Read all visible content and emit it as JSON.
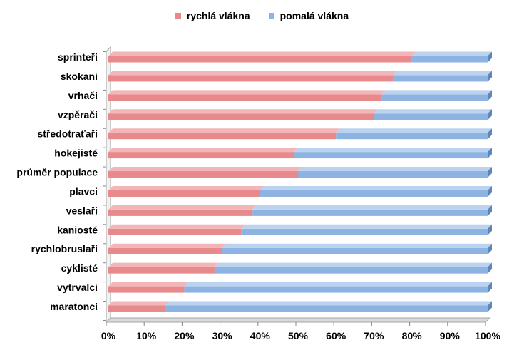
{
  "chart_data": {
    "type": "bar",
    "orientation": "horizontal",
    "stacked": true,
    "percent": true,
    "categories": [
      "sprinteři",
      "skokani",
      "vrhači",
      "vzpěrači",
      "středotraťaři",
      "hokejisté",
      "průměr populace",
      "plavci",
      "veslaři",
      "kaniosté",
      "rychlobruslaři",
      "cyklisté",
      "vytrvalci",
      "maratonci"
    ],
    "series": [
      {
        "name": "rychlá vlákna",
        "color": "#e8898c",
        "values": [
          80,
          75,
          72,
          70,
          60,
          49,
          50,
          40,
          38,
          35,
          30,
          28,
          20,
          15
        ]
      },
      {
        "name": "pomalá vlákna",
        "color": "#8db3e2",
        "values": [
          20,
          25,
          28,
          30,
          40,
          51,
          50,
          60,
          62,
          65,
          70,
          72,
          80,
          85
        ]
      }
    ],
    "xlim": [
      0,
      100
    ],
    "xticks": [
      "0%",
      "10%",
      "20%",
      "30%",
      "40%",
      "50%",
      "60%",
      "70%",
      "80%",
      "90%",
      "100%"
    ],
    "legend_position": "top",
    "grid": false
  }
}
